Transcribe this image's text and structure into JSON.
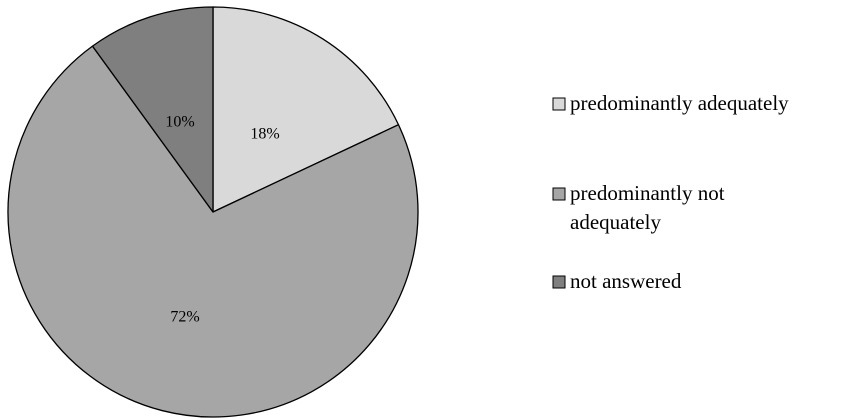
{
  "chart_data": {
    "type": "pie",
    "title": "",
    "categories": [
      "predominantly adequately",
      "predominantly not adequately",
      "not answered"
    ],
    "values": [
      18,
      72,
      10
    ],
    "labels": [
      "18%",
      "72%",
      "10%"
    ],
    "colors": [
      "#d9d9d9",
      "#a6a6a6",
      "#7f7f7f"
    ],
    "start_angle_deg": 0,
    "direction": "clockwise",
    "legend": {
      "position": "right",
      "items": [
        {
          "lines": [
            "predominantly adequately"
          ]
        },
        {
          "lines": [
            "predominantly not",
            "adequately"
          ]
        },
        {
          "lines": [
            "not answered"
          ]
        }
      ]
    }
  }
}
